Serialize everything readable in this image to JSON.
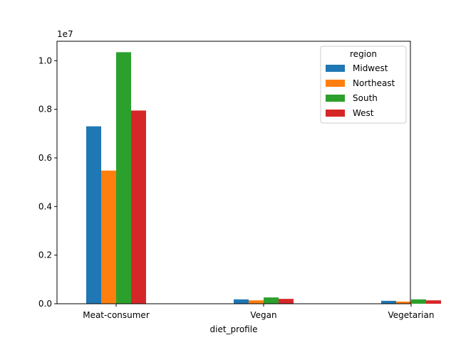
{
  "chart_data": {
    "type": "bar",
    "categories": [
      "Meat-consumer",
      "Vegan",
      "Vegetarian"
    ],
    "series": [
      {
        "name": "Midwest",
        "color": "#1f77b4",
        "values": [
          7300000,
          180000,
          120000
        ]
      },
      {
        "name": "Northeast",
        "color": "#ff7f0e",
        "values": [
          5480000,
          140000,
          90000
        ]
      },
      {
        "name": "South",
        "color": "#2ca02c",
        "values": [
          10350000,
          260000,
          180000
        ]
      },
      {
        "name": "West",
        "color": "#d62728",
        "values": [
          7950000,
          200000,
          140000
        ]
      }
    ],
    "xlabel": "diet_profile",
    "ylabel": "",
    "ylim": [
      0,
      10800000
    ],
    "yticks": [
      0,
      2000000,
      4000000,
      6000000,
      8000000,
      10000000
    ],
    "ytick_labels": [
      "0.0",
      "0.2",
      "0.4",
      "0.6",
      "0.8",
      "1.0"
    ],
    "offset_text": "1e7",
    "legend_title": "region",
    "legend_position": "top-right",
    "grid": false
  }
}
